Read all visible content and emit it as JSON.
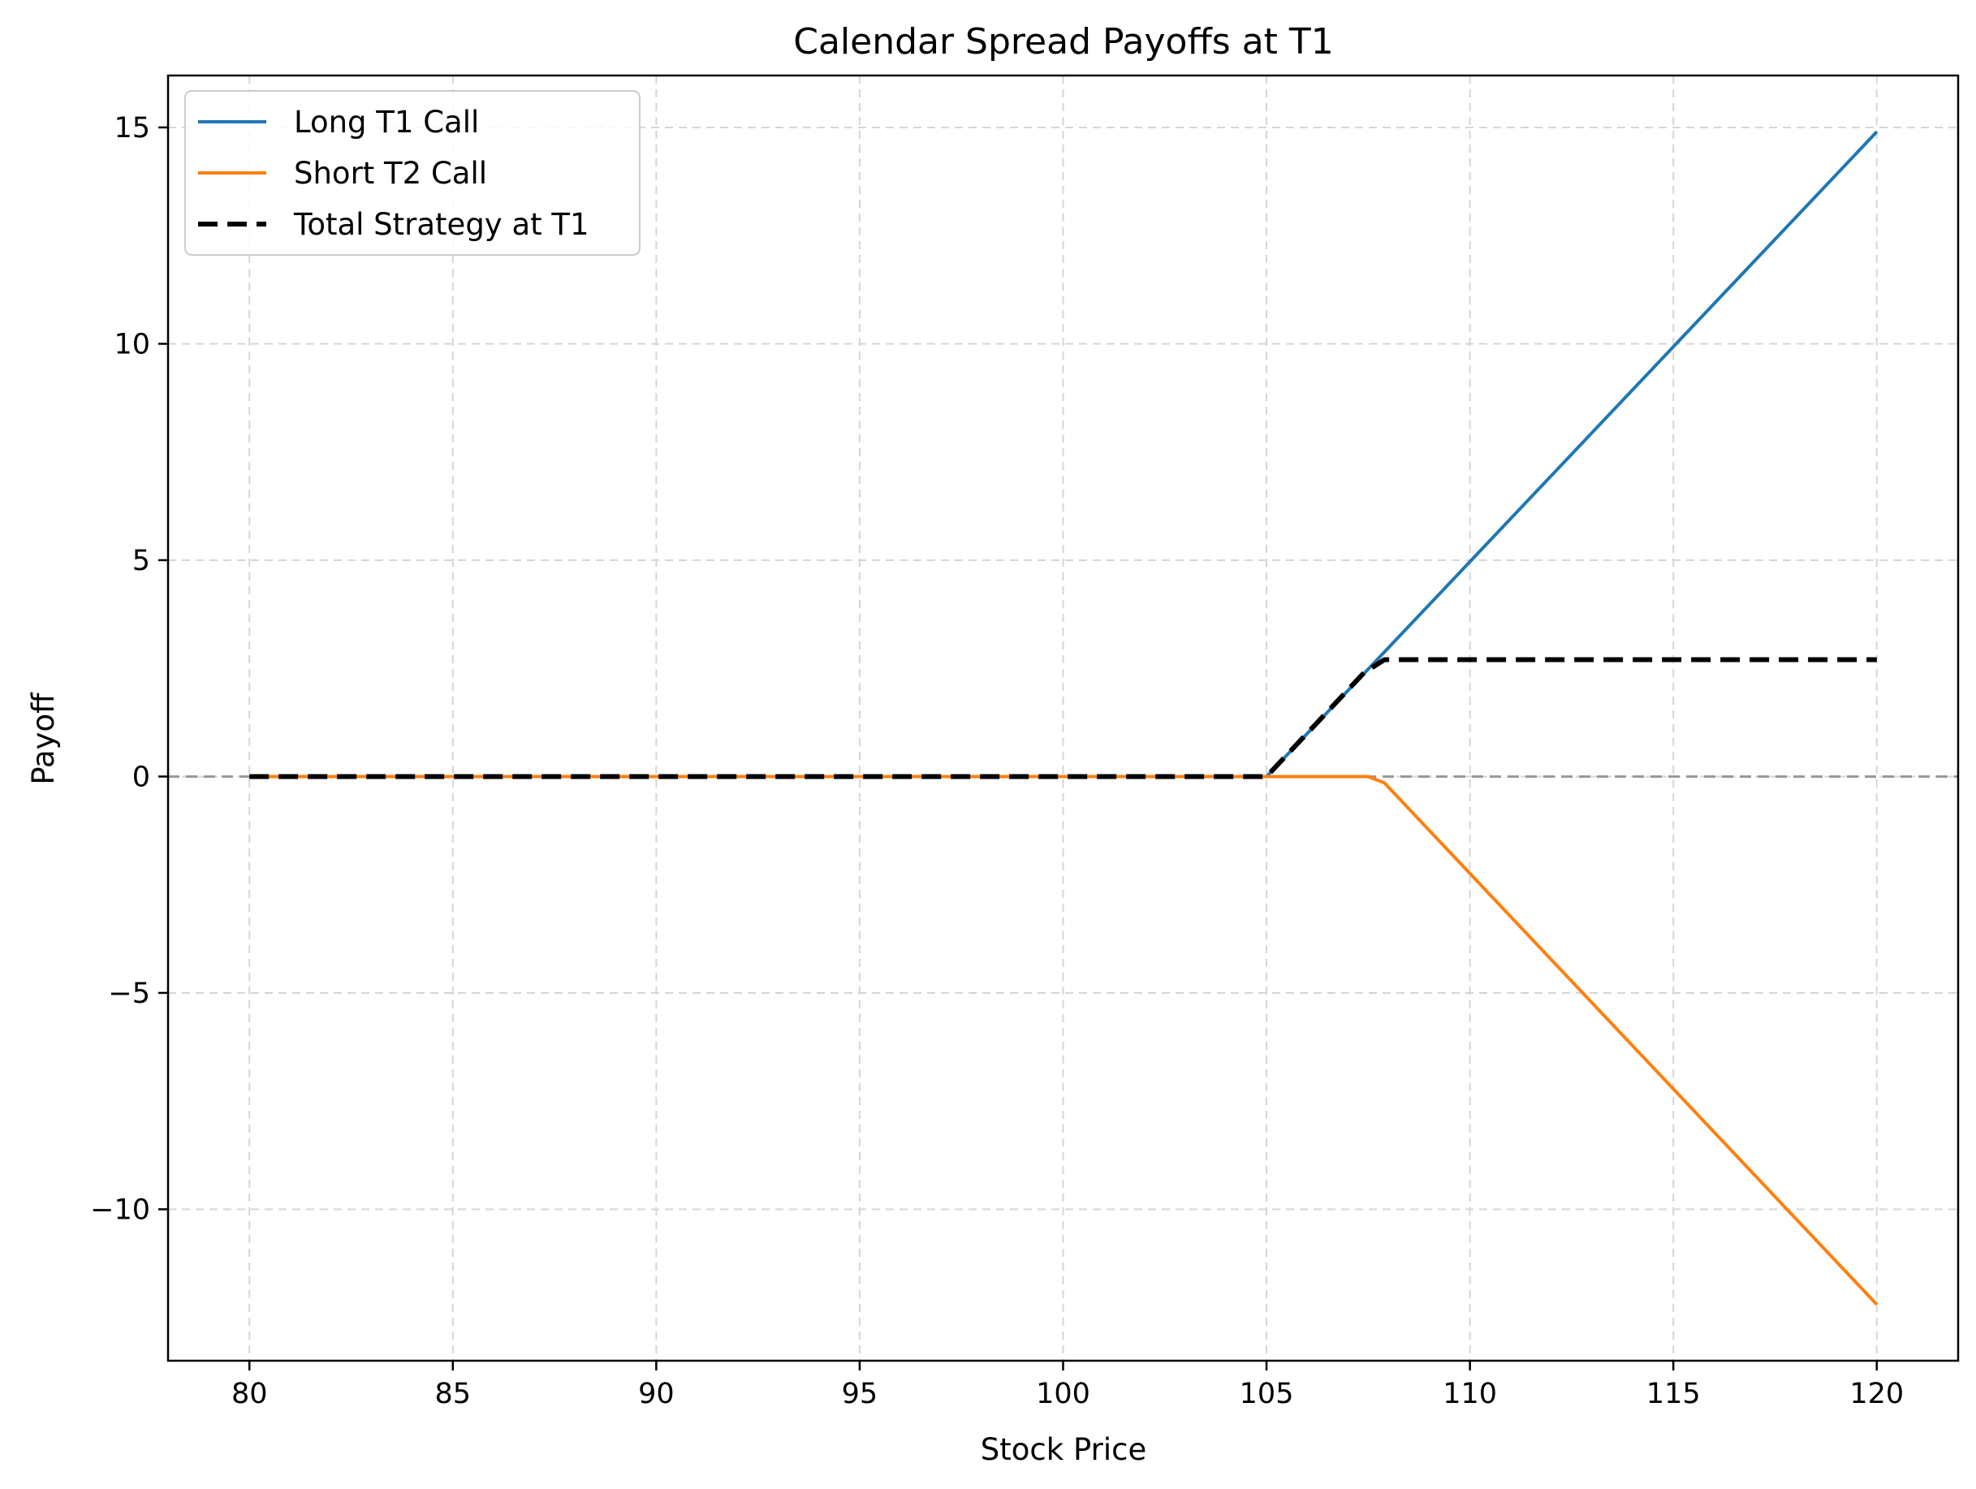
{
  "chart_data": {
    "type": "line",
    "title": "Calendar Spread Payoffs at T1",
    "xlabel": "Stock Price",
    "ylabel": "Payoff",
    "xlim": [
      78,
      122
    ],
    "ylim": [
      -13.5,
      16.2
    ],
    "x_ticks": [
      80,
      85,
      90,
      95,
      100,
      105,
      110,
      115,
      120
    ],
    "y_ticks": [
      -10,
      -5,
      0,
      5,
      10,
      15
    ],
    "y_tick_labels": [
      "−10",
      "−5",
      "0",
      "5",
      "10",
      "15"
    ],
    "grid": true,
    "legend_position": "top-left",
    "zero_line": {
      "y": 0,
      "color": "#999999",
      "style": "dashed"
    },
    "series": [
      {
        "name": "Long T1 Call",
        "color": "#1f77b4",
        "style": "solid",
        "x": [
          80,
          105,
          120
        ],
        "y": [
          0,
          0,
          14.9
        ]
      },
      {
        "name": "Short T2 Call",
        "color": "#ff7f0e",
        "style": "solid",
        "x": [
          80,
          107.5,
          107.9,
          120
        ],
        "y": [
          0,
          0,
          -0.15,
          -12.2
        ]
      },
      {
        "name": "Total Strategy at T1",
        "color": "#000000",
        "style": "dashed",
        "x": [
          80,
          105,
          107.4,
          107.9,
          120
        ],
        "y": [
          0,
          0,
          2.4,
          2.7,
          2.7
        ]
      }
    ]
  }
}
